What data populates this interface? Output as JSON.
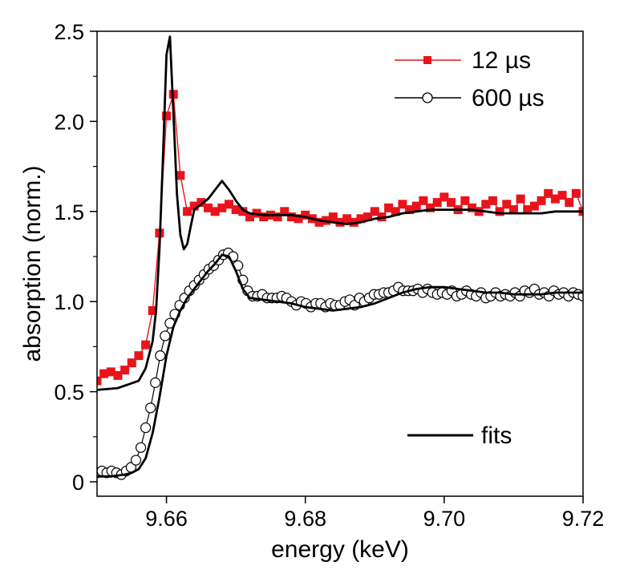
{
  "chart_data": {
    "type": "line",
    "xlabel": "energy (keV)",
    "ylabel": "absorption (norm.)",
    "xlim": [
      9.65,
      9.72
    ],
    "ylim": [
      -0.08,
      2.5
    ],
    "x_ticks": [
      {
        "value": 9.66,
        "label": "9.66"
      },
      {
        "value": 9.68,
        "label": "9.68"
      },
      {
        "value": 9.7,
        "label": "9.70"
      },
      {
        "value": 9.72,
        "label": "9.72"
      }
    ],
    "y_ticks": [
      {
        "value": 0,
        "label": "0"
      },
      {
        "value": 0.5,
        "label": "0.5"
      },
      {
        "value": 1.0,
        "label": "1.0"
      },
      {
        "value": 1.5,
        "label": "1.5"
      },
      {
        "value": 2.0,
        "label": "2.0"
      },
      {
        "value": 2.5,
        "label": "2.5"
      }
    ],
    "legend": {
      "position": "top-right",
      "entries": [
        "12 µs",
        "600 µs"
      ],
      "fits_label": "fits"
    },
    "colors": {
      "red_series": "#e8141c",
      "black": "#000000"
    },
    "series": [
      {
        "name": "12 µs",
        "marker": "filled-square",
        "color": "#e8141c",
        "x": [
          9.65,
          9.651,
          9.652,
          9.653,
          9.654,
          9.655,
          9.656,
          9.657,
          9.658,
          9.659,
          9.66,
          9.661,
          9.662,
          9.663,
          9.664,
          9.665,
          9.666,
          9.667,
          9.668,
          9.669,
          9.67,
          9.671,
          9.672,
          9.673,
          9.674,
          9.675,
          9.676,
          9.677,
          9.678,
          9.679,
          9.68,
          9.681,
          9.682,
          9.683,
          9.684,
          9.685,
          9.686,
          9.687,
          9.688,
          9.689,
          9.69,
          9.691,
          9.692,
          9.693,
          9.694,
          9.695,
          9.696,
          9.697,
          9.698,
          9.699,
          9.7,
          9.701,
          9.702,
          9.703,
          9.704,
          9.705,
          9.706,
          9.707,
          9.708,
          9.709,
          9.71,
          9.711,
          9.712,
          9.713,
          9.714,
          9.715,
          9.716,
          9.717,
          9.718,
          9.719,
          9.72
        ],
        "y": [
          0.56,
          0.6,
          0.61,
          0.59,
          0.62,
          0.66,
          0.7,
          0.76,
          0.95,
          1.38,
          2.03,
          2.15,
          1.7,
          1.5,
          1.53,
          1.55,
          1.52,
          1.5,
          1.52,
          1.54,
          1.51,
          1.5,
          1.47,
          1.49,
          1.47,
          1.48,
          1.47,
          1.5,
          1.47,
          1.46,
          1.48,
          1.46,
          1.44,
          1.45,
          1.47,
          1.44,
          1.46,
          1.44,
          1.46,
          1.47,
          1.5,
          1.47,
          1.52,
          1.5,
          1.54,
          1.51,
          1.53,
          1.56,
          1.52,
          1.55,
          1.58,
          1.55,
          1.51,
          1.56,
          1.52,
          1.5,
          1.54,
          1.56,
          1.5,
          1.54,
          1.51,
          1.57,
          1.51,
          1.53,
          1.56,
          1.6,
          1.57,
          1.59,
          1.55,
          1.6,
          1.5
        ]
      },
      {
        "name": "600 µs",
        "marker": "open-circle",
        "color": "#000000",
        "x": [
          9.65,
          9.6507,
          9.6514,
          9.6521,
          9.6528,
          9.6535,
          9.6542,
          9.6549,
          9.6556,
          9.6563,
          9.657,
          9.6577,
          9.6584,
          9.6591,
          9.6598,
          9.6605,
          9.6612,
          9.6619,
          9.6626,
          9.6633,
          9.664,
          9.6647,
          9.6654,
          9.6661,
          9.6668,
          9.6675,
          9.6682,
          9.6689,
          9.6696,
          9.6703,
          9.671,
          9.6717,
          9.6724,
          9.6731,
          9.6738,
          9.6745,
          9.6752,
          9.6759,
          9.6766,
          9.6773,
          9.678,
          9.6787,
          9.6794,
          9.6801,
          9.6808,
          9.6815,
          9.6822,
          9.6829,
          9.6836,
          9.6843,
          9.685,
          9.6857,
          9.6864,
          9.6871,
          9.6878,
          9.6885,
          9.6892,
          9.6899,
          9.6906,
          9.6913,
          9.692,
          9.6927,
          9.6934,
          9.6941,
          9.6948,
          9.6955,
          9.6962,
          9.6969,
          9.6976,
          9.6983,
          9.699,
          9.6997,
          9.7004,
          9.7011,
          9.7018,
          9.7025,
          9.7032,
          9.7039,
          9.7046,
          9.7053,
          9.706,
          9.7067,
          9.7074,
          9.7081,
          9.7088,
          9.7095,
          9.7102,
          9.7109,
          9.7116,
          9.7123,
          9.713,
          9.7137,
          9.7144,
          9.7151,
          9.7158,
          9.7165,
          9.7172,
          9.7179,
          9.7186,
          9.7193,
          9.72
        ],
        "y": [
          0.05,
          0.06,
          0.05,
          0.06,
          0.05,
          0.04,
          0.06,
          0.08,
          0.12,
          0.19,
          0.3,
          0.41,
          0.55,
          0.7,
          0.81,
          0.88,
          0.93,
          0.98,
          1.02,
          1.06,
          1.09,
          1.12,
          1.15,
          1.18,
          1.2,
          1.23,
          1.26,
          1.27,
          1.25,
          1.2,
          1.12,
          1.06,
          1.03,
          1.03,
          1.04,
          1.02,
          1.02,
          1.02,
          1.03,
          1.02,
          1.0,
          0.98,
          1.0,
          0.99,
          0.97,
          0.99,
          0.99,
          0.97,
          0.99,
          0.98,
          0.98,
          1.0,
          1.01,
          0.98,
          1.02,
          1.0,
          1.02,
          1.04,
          1.04,
          1.05,
          1.05,
          1.06,
          1.08,
          1.06,
          1.06,
          1.06,
          1.07,
          1.05,
          1.07,
          1.05,
          1.04,
          1.05,
          1.04,
          1.06,
          1.03,
          1.04,
          1.06,
          1.04,
          1.03,
          1.05,
          1.02,
          1.03,
          1.05,
          1.03,
          1.04,
          1.03,
          1.05,
          1.03,
          1.06,
          1.05,
          1.07,
          1.04,
          1.05,
          1.03,
          1.06,
          1.04,
          1.05,
          1.03,
          1.05,
          1.04,
          1.03
        ]
      },
      {
        "name": "fits",
        "marker": "line",
        "color": "#000000",
        "x": [
          9.65,
          9.653,
          9.656,
          9.657,
          9.658,
          9.6585,
          9.659,
          9.6595,
          9.66,
          9.6605,
          9.661,
          9.6615,
          9.662,
          9.6625,
          9.663,
          9.6635,
          9.664,
          9.665,
          9.666,
          9.667,
          9.668,
          9.669,
          9.67,
          9.671,
          9.672,
          9.674,
          9.676,
          9.678,
          9.68,
          9.682,
          9.684,
          9.686,
          9.688,
          9.69,
          9.692,
          9.694,
          9.696,
          9.698,
          9.7,
          9.702,
          9.704,
          9.706,
          9.708,
          9.71,
          9.712,
          9.714,
          9.716,
          9.718,
          9.72
        ],
        "y": [
          0.51,
          0.52,
          0.56,
          0.63,
          0.78,
          0.95,
          1.3,
          1.8,
          2.37,
          2.47,
          2.05,
          1.6,
          1.37,
          1.29,
          1.32,
          1.42,
          1.51,
          1.54,
          1.57,
          1.62,
          1.67,
          1.62,
          1.56,
          1.51,
          1.49,
          1.48,
          1.48,
          1.48,
          1.47,
          1.45,
          1.44,
          1.43,
          1.44,
          1.46,
          1.47,
          1.49,
          1.5,
          1.51,
          1.51,
          1.51,
          1.51,
          1.5,
          1.49,
          1.49,
          1.49,
          1.49,
          1.5,
          1.5,
          1.5
        ]
      },
      {
        "name": "fits",
        "marker": "line",
        "color": "#000000",
        "x": [
          9.65,
          9.652,
          9.654,
          9.655,
          9.656,
          9.657,
          9.658,
          9.659,
          9.66,
          9.661,
          9.662,
          9.663,
          9.664,
          9.665,
          9.666,
          9.667,
          9.668,
          9.669,
          9.67,
          9.671,
          9.672,
          9.674,
          9.676,
          9.678,
          9.68,
          9.682,
          9.684,
          9.686,
          9.688,
          9.69,
          9.692,
          9.694,
          9.696,
          9.698,
          9.7,
          9.702,
          9.704,
          9.706,
          9.708,
          9.71,
          9.712,
          9.714,
          9.716,
          9.718,
          9.72
        ],
        "y": [
          0.03,
          0.03,
          0.04,
          0.05,
          0.07,
          0.13,
          0.27,
          0.47,
          0.7,
          0.86,
          0.95,
          1.02,
          1.07,
          1.12,
          1.17,
          1.21,
          1.26,
          1.25,
          1.17,
          1.07,
          1.02,
          1.01,
          1.0,
          0.99,
          0.97,
          0.96,
          0.95,
          0.96,
          0.97,
          0.99,
          1.02,
          1.05,
          1.07,
          1.08,
          1.08,
          1.07,
          1.06,
          1.05,
          1.05,
          1.04,
          1.04,
          1.04,
          1.05,
          1.05,
          1.05
        ]
      }
    ]
  }
}
